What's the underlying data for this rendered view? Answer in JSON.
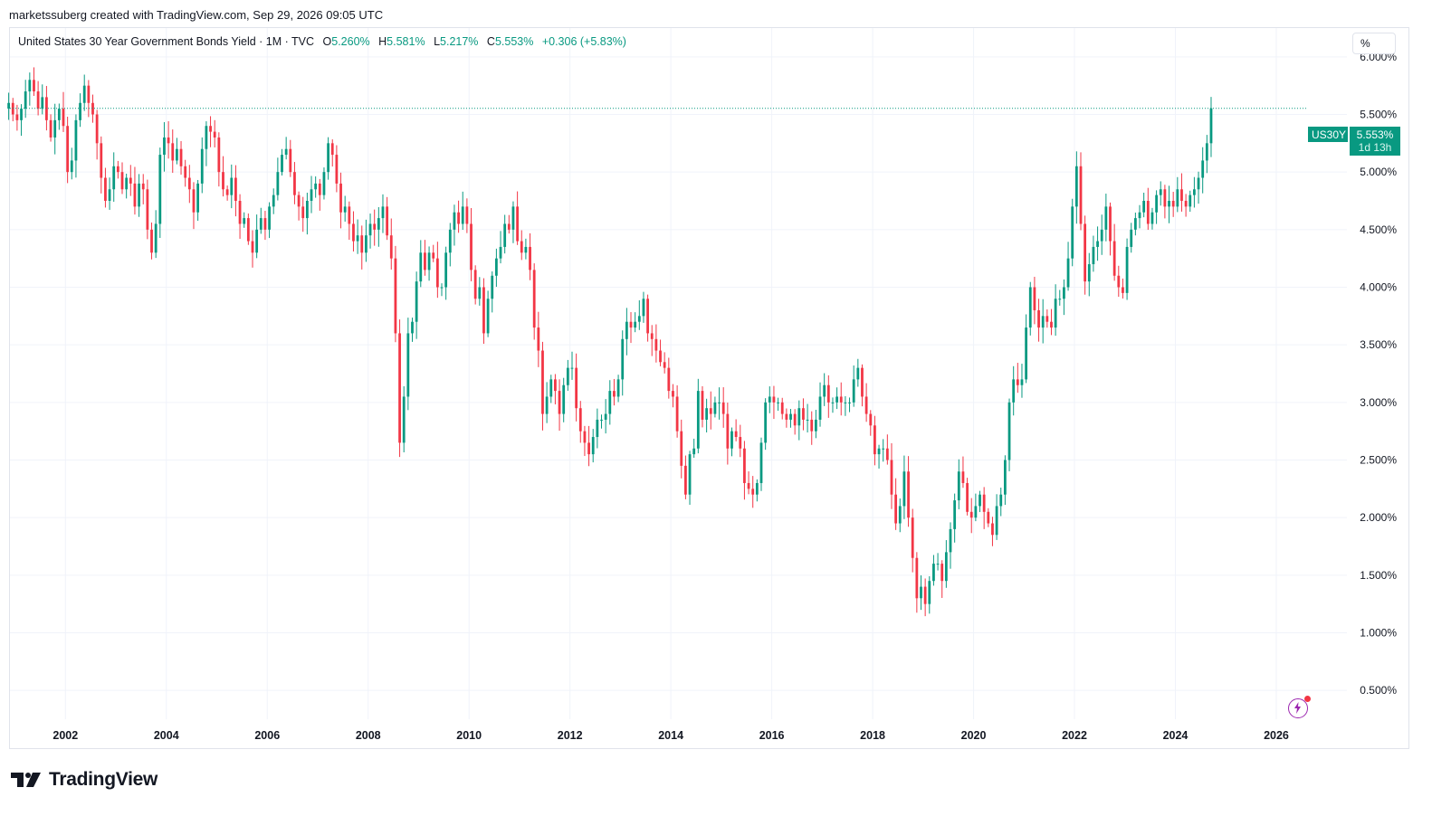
{
  "credit": "marketssuberg created with TradingView.com, Sep 29, 2026 09:05 UTC",
  "legend": {
    "name": "United States 30 Year Government Bonds Yield · 1M · TVC",
    "o_label": "O",
    "o_value": "5.260%",
    "h_label": "H",
    "h_value": "5.581%",
    "l_label": "L",
    "l_value": "5.217%",
    "c_label": "C",
    "c_value": "5.553%",
    "change": "+0.306 (+5.83%)"
  },
  "unit_button": "%",
  "price_tag": {
    "symbol": "US30Y",
    "value": "5.553%",
    "countdown": "1d 13h"
  },
  "brand": "TradingView",
  "colors": {
    "up": "#089981",
    "down": "#f23645",
    "grid": "#f0f3fa",
    "text": "#131722"
  },
  "chart_data": {
    "type": "candlestick",
    "title": "United States 30 Year Government Bonds Yield",
    "interval": "1M",
    "ylim": [
      0.25,
      6.25
    ],
    "xlim": [
      2000.9,
      2027.4
    ],
    "y_ticks": [
      "6.000%",
      "5.500%",
      "5.000%",
      "4.500%",
      "4.000%",
      "3.500%",
      "3.000%",
      "2.500%",
      "2.000%",
      "1.500%",
      "1.000%",
      "0.500%"
    ],
    "y_tick_values": [
      6.0,
      5.5,
      5.0,
      4.5,
      4.0,
      3.5,
      3.0,
      2.5,
      2.0,
      1.5,
      1.0,
      0.5
    ],
    "x_ticks": [
      "2002",
      "2004",
      "2006",
      "2008",
      "2010",
      "2012",
      "2014",
      "2016",
      "2018",
      "2020",
      "2022",
      "2024",
      "2026"
    ],
    "x_tick_values": [
      2002,
      2004,
      2006,
      2008,
      2010,
      2012,
      2014,
      2016,
      2018,
      2020,
      2022,
      2024,
      2026
    ],
    "last_close": 5.553,
    "start": "2000-11",
    "closes": [
      5.6,
      5.5,
      5.45,
      5.55,
      5.7,
      5.8,
      5.7,
      5.55,
      5.65,
      5.45,
      5.3,
      5.45,
      5.55,
      5.4,
      5.0,
      5.1,
      5.45,
      5.6,
      5.75,
      5.6,
      5.5,
      5.25,
      4.95,
      4.75,
      4.85,
      5.05,
      5.0,
      4.85,
      4.95,
      4.9,
      4.7,
      4.9,
      4.85,
      4.5,
      4.3,
      4.55,
      5.15,
      5.3,
      5.25,
      5.1,
      5.2,
      5.05,
      4.95,
      4.85,
      4.65,
      4.9,
      5.2,
      5.4,
      5.35,
      5.3,
      5.0,
      4.85,
      4.8,
      4.95,
      4.75,
      4.55,
      4.6,
      4.4,
      4.3,
      4.5,
      4.6,
      4.5,
      4.7,
      4.8,
      5.0,
      5.15,
      5.2,
      5.0,
      4.8,
      4.7,
      4.6,
      4.75,
      4.85,
      4.9,
      4.8,
      5.0,
      5.25,
      5.15,
      4.9,
      4.65,
      4.7,
      4.55,
      4.4,
      4.45,
      4.3,
      4.45,
      4.55,
      4.5,
      4.6,
      4.7,
      4.45,
      4.25,
      3.6,
      2.65,
      3.05,
      3.6,
      3.7,
      4.05,
      4.3,
      4.15,
      4.3,
      4.25,
      4.0,
      4.0,
      4.3,
      4.5,
      4.65,
      4.55,
      4.7,
      4.55,
      4.15,
      3.9,
      4.0,
      3.6,
      3.9,
      4.1,
      4.25,
      4.35,
      4.55,
      4.5,
      4.7,
      4.4,
      4.3,
      4.35,
      4.15,
      3.65,
      3.45,
      2.9,
      3.05,
      3.2,
      3.1,
      2.9,
      3.15,
      3.3,
      3.3,
      2.95,
      2.75,
      2.65,
      2.55,
      2.7,
      2.85,
      2.85,
      2.9,
      3.1,
      3.05,
      3.2,
      3.55,
      3.7,
      3.65,
      3.7,
      3.75,
      3.9,
      3.6,
      3.55,
      3.45,
      3.35,
      3.3,
      3.1,
      3.05,
      2.75,
      2.45,
      2.2,
      2.55,
      2.6,
      3.1,
      2.85,
      2.95,
      2.9,
      3.0,
      3.0,
      2.9,
      2.6,
      2.75,
      2.7,
      2.6,
      2.3,
      2.25,
      2.2,
      2.3,
      2.65,
      3.0,
      3.05,
      3.0,
      3.0,
      2.9,
      2.85,
      2.9,
      2.8,
      2.95,
      2.85,
      2.85,
      2.75,
      2.85,
      3.05,
      3.15,
      3.0,
      3.0,
      3.05,
      3.0,
      3.0,
      3.0,
      3.2,
      3.3,
      3.05,
      2.9,
      2.8,
      2.55,
      2.6,
      2.6,
      2.5,
      2.2,
      1.95,
      2.1,
      2.4,
      2.0,
      1.65,
      1.3,
      1.4,
      1.25,
      1.45,
      1.6,
      1.6,
      1.45,
      1.7,
      1.9,
      2.15,
      2.4,
      2.3,
      2.05,
      2.0,
      2.1,
      2.2,
      2.05,
      1.95,
      1.85,
      2.1,
      2.2,
      2.5,
      3.0,
      3.2,
      3.15,
      3.2,
      3.65,
      4.0,
      3.8,
      3.65,
      3.75,
      3.7,
      3.65,
      3.9,
      3.9,
      4.0,
      4.25,
      4.7,
      5.05,
      4.55,
      4.05,
      4.2,
      4.35,
      4.4,
      4.5,
      4.7,
      4.4,
      4.1,
      4.0,
      3.95,
      4.35,
      4.5,
      4.6,
      4.65,
      4.75,
      4.55,
      4.65,
      4.8,
      4.85,
      4.7,
      4.75,
      4.7,
      4.85,
      4.75,
      4.7,
      4.8,
      4.85,
      4.95,
      5.1,
      5.25,
      5.553
    ]
  }
}
